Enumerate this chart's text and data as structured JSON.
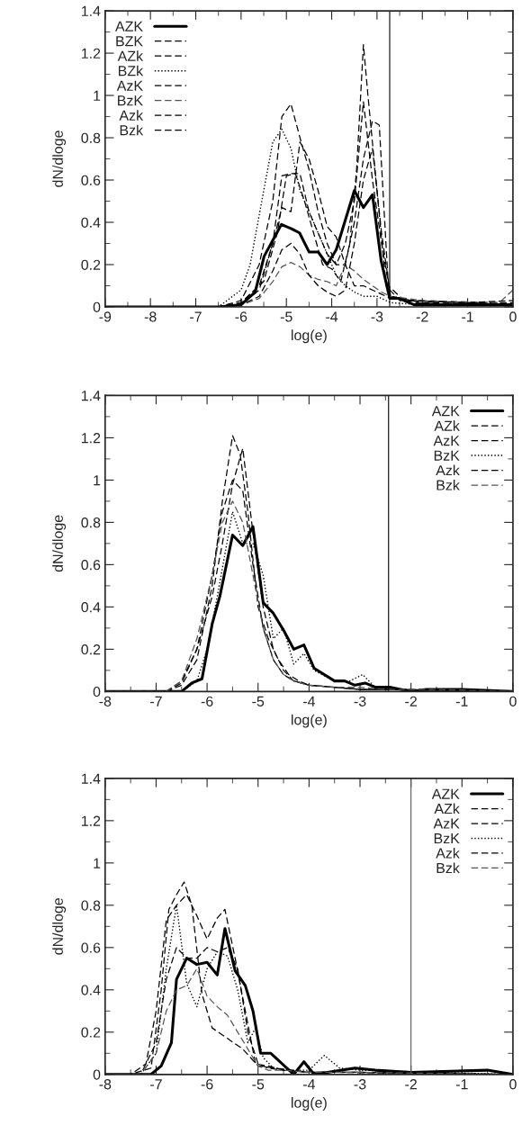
{
  "chart_data": [
    {
      "type": "line",
      "xlabel": "log(e)",
      "ylabel": "dN/dloge",
      "xlim": [
        -9,
        0
      ],
      "ylim": [
        0,
        1.4
      ],
      "xticks": [
        -9,
        -8,
        -7,
        -6,
        -5,
        -4,
        -3,
        -2,
        -1,
        0
      ],
      "yticks": [
        0,
        0.2,
        0.4,
        0.6,
        0.8,
        1,
        1.2,
        1.4
      ],
      "legend": "top left",
      "grid": false,
      "ref_lines": [
        {
          "axis": "x",
          "value": -2.72,
          "color": "#000000"
        }
      ],
      "series": [
        {
          "name": "AZK",
          "color": "#000000",
          "line_style": "solid",
          "x": [
            -9,
            -6.5,
            -6.0,
            -5.69,
            -5.49,
            -5.11,
            -4.89,
            -4.71,
            -4.5,
            -4.3,
            -4.1,
            -3.9,
            -3.5,
            -3.3,
            -3.1,
            -2.91,
            -2.72,
            -2.51,
            -2.18,
            -1.5,
            0
          ],
          "values": [
            0,
            0,
            0.01,
            0.07,
            0.24,
            0.39,
            0.37,
            0.35,
            0.26,
            0.26,
            0.2,
            0.27,
            0.55,
            0.47,
            0.53,
            0.22,
            0.04,
            0.04,
            0.01,
            0.01,
            0.01
          ]
        },
        {
          "name": "BZK",
          "color": "#000000",
          "line_style": "dashed",
          "x": [
            -9,
            -6.5,
            -6.0,
            -5.6,
            -5.3,
            -5.1,
            -4.9,
            -4.7,
            -4.5,
            -4.3,
            -4.1,
            -3.9,
            -3.7,
            -3.5,
            -3.3,
            -3.1,
            -2.9,
            -2.7,
            -2.3,
            -1,
            0
          ],
          "values": [
            0,
            0,
            0.02,
            0.1,
            0.3,
            0.62,
            0.63,
            0.63,
            0.45,
            0.35,
            0.25,
            0.2,
            0.3,
            0.5,
            0.97,
            0.6,
            0.3,
            0.05,
            0.02,
            0.01,
            0.01
          ]
        },
        {
          "name": "AZk",
          "color": "#000000",
          "line_style": "dashed",
          "x": [
            -9,
            -6.5,
            -6.0,
            -5.6,
            -5.3,
            -5.1,
            -4.9,
            -4.7,
            -4.5,
            -4.3,
            -4.1,
            -3.9,
            -3.7,
            -3.5,
            -3.3,
            -3.1,
            -2.95,
            -2.75,
            -2.4,
            -1,
            0
          ],
          "values": [
            0,
            0,
            0.03,
            0.2,
            0.5,
            0.9,
            0.96,
            0.8,
            0.65,
            0.45,
            0.3,
            0.2,
            0.2,
            0.4,
            0.7,
            0.88,
            0.86,
            0.1,
            0.03,
            0.02,
            0.02
          ]
        },
        {
          "name": "BZk",
          "color": "#000000",
          "line_style": "dotted",
          "x": [
            -9,
            -6.5,
            -6.0,
            -5.8,
            -5.5,
            -5.3,
            -5.1,
            -4.9,
            -4.7,
            -4.5,
            -4.3,
            -4.1,
            -3.9,
            -3.7,
            -3.5,
            -3.3,
            -3.0,
            -2.7,
            -2,
            0
          ],
          "values": [
            0,
            0,
            0.08,
            0.2,
            0.55,
            0.78,
            0.84,
            0.75,
            0.55,
            0.45,
            0.35,
            0.25,
            0.15,
            0.1,
            0.07,
            0.05,
            0.05,
            0.02,
            0.01,
            0.01
          ]
        },
        {
          "name": "AzK",
          "color": "#000000",
          "line_style": "dashed",
          "x": [
            -9,
            -6.5,
            -6.0,
            -5.5,
            -5.2,
            -5.0,
            -4.8,
            -4.6,
            -4.4,
            -4.2,
            -4.0,
            -3.8,
            -3.6,
            -3.45,
            -3.3,
            -3.2,
            -3.0,
            -2.8,
            -2.5,
            -1,
            0
          ],
          "values": [
            0,
            0,
            0.02,
            0.12,
            0.35,
            0.62,
            0.63,
            0.5,
            0.35,
            0.2,
            0.18,
            0.12,
            0.3,
            0.65,
            1.24,
            1.0,
            0.55,
            0.1,
            0.03,
            0.02,
            0.01
          ]
        },
        {
          "name": "BzK",
          "color": "#555555",
          "line_style": "dashed",
          "x": [
            -9,
            -6.5,
            -6.0,
            -5.6,
            -5.3,
            -5.1,
            -4.9,
            -4.7,
            -4.5,
            -4.3,
            -4.1,
            -3.9,
            -3.7,
            -3.5,
            -3.3,
            -3.1,
            -2.9,
            -2.7,
            -2,
            -0.3,
            0
          ],
          "values": [
            0,
            0,
            0.01,
            0.04,
            0.12,
            0.19,
            0.21,
            0.19,
            0.15,
            0.13,
            0.12,
            0.1,
            0.2,
            0.17,
            0.13,
            0.1,
            0.07,
            0.05,
            0.03,
            0.02,
            0.08
          ]
        },
        {
          "name": "Azk",
          "color": "#000000",
          "line_style": "dashed",
          "x": [
            -9,
            -6.5,
            -6.0,
            -5.6,
            -5.3,
            -5.1,
            -4.9,
            -4.7,
            -4.5,
            -4.3,
            -4.1,
            -3.9,
            -3.7,
            -3.5,
            -3.3,
            -3.1,
            -2.9,
            -2.7,
            -2,
            0
          ],
          "values": [
            0,
            0,
            0.01,
            0.05,
            0.17,
            0.27,
            0.3,
            0.25,
            0.15,
            0.1,
            0.07,
            0.05,
            0.08,
            0.3,
            0.6,
            0.75,
            0.35,
            0.05,
            0.02,
            0.01
          ]
        },
        {
          "name": "Bzk",
          "color": "#000000",
          "line_style": "dashed",
          "x": [
            -9,
            -6.5,
            -6.0,
            -5.6,
            -5.3,
            -5.1,
            -4.9,
            -4.7,
            -4.5,
            -4.3,
            -4.1,
            -3.9,
            -3.7,
            -3.5,
            -3.3,
            -3.1,
            -2.9,
            -2.7,
            -2.2,
            -1,
            0
          ],
          "values": [
            0,
            0,
            0.01,
            0.08,
            0.3,
            0.47,
            0.45,
            0.78,
            0.7,
            0.55,
            0.38,
            0.33,
            0.2,
            0.1,
            0.1,
            0.08,
            0.06,
            0.04,
            0.03,
            0.02,
            0.03
          ]
        }
      ]
    },
    {
      "type": "line",
      "xlabel": "log(e)",
      "ylabel": "dN/dloge",
      "xlim": [
        -8,
        0
      ],
      "ylim": [
        0,
        1.4
      ],
      "xticks": [
        -8,
        -7,
        -6,
        -5,
        -4,
        -3,
        -2,
        -1,
        0
      ],
      "yticks": [
        0,
        0.2,
        0.4,
        0.6,
        0.8,
        1,
        1.2,
        1.4
      ],
      "legend": "top right",
      "grid": false,
      "ref_lines": [
        {
          "axis": "x",
          "value": -2.44,
          "color": "#000000"
        }
      ],
      "series": [
        {
          "name": "AZK",
          "color": "#000000",
          "line_style": "solid",
          "x": [
            -8,
            -6.5,
            -6.3,
            -6.1,
            -5.9,
            -5.75,
            -5.5,
            -5.3,
            -5.1,
            -4.9,
            -4.7,
            -4.5,
            -4.3,
            -4.1,
            -3.9,
            -3.5,
            -3.3,
            -3.1,
            -2.9,
            -2.7,
            -2.4,
            -2.0,
            -1.7,
            -1.0,
            0
          ],
          "values": [
            0,
            0,
            0.04,
            0.06,
            0.32,
            0.45,
            0.74,
            0.69,
            0.78,
            0.42,
            0.37,
            0.29,
            0.2,
            0.22,
            0.11,
            0.05,
            0.05,
            0.03,
            0.04,
            0.02,
            0.02,
            0.0,
            0.01,
            0.01,
            0
          ]
        },
        {
          "name": "AZk",
          "color": "#000000",
          "line_style": "dashed",
          "x": [
            -8,
            -6.8,
            -6.5,
            -6.2,
            -5.9,
            -5.7,
            -5.5,
            -5.35,
            -5.2,
            -5.0,
            -4.8,
            -4.6,
            -4.4,
            -4.2,
            -4.0,
            -3.5,
            -3.0,
            -2.5,
            0
          ],
          "values": [
            0,
            0,
            0.03,
            0.15,
            0.5,
            0.9,
            1.21,
            1.12,
            0.85,
            0.4,
            0.25,
            0.15,
            0.08,
            0.05,
            0.03,
            0.02,
            0.01,
            0.01,
            0
          ]
        },
        {
          "name": "AzK",
          "color": "#000000",
          "line_style": "dashed",
          "x": [
            -8,
            -6.8,
            -6.5,
            -6.2,
            -5.9,
            -5.7,
            -5.5,
            -5.3,
            -5.1,
            -4.9,
            -4.7,
            -4.5,
            -4.3,
            -4.0,
            -3.5,
            -3.0,
            -2.5,
            0
          ],
          "values": [
            0,
            0,
            0.04,
            0.2,
            0.55,
            0.85,
            1.0,
            0.95,
            0.6,
            0.3,
            0.15,
            0.08,
            0.05,
            0.03,
            0.02,
            0.01,
            0.01,
            0
          ]
        },
        {
          "name": "BzK",
          "color": "#000000",
          "line_style": "dotted",
          "x": [
            -8,
            -6.5,
            -6.2,
            -6.0,
            -5.8,
            -5.5,
            -5.3,
            -5.1,
            -4.9,
            -4.7,
            -4.5,
            -4.3,
            -4.1,
            -3.9,
            -3.5,
            -3.2,
            -2.95,
            -2.7,
            -2.4,
            0
          ],
          "values": [
            0,
            0,
            0.05,
            0.2,
            0.45,
            0.85,
            0.7,
            0.7,
            0.55,
            0.25,
            0.3,
            0.13,
            0.18,
            0.1,
            0.05,
            0.05,
            0.08,
            0.02,
            0.01,
            0
          ]
        },
        {
          "name": "Azk",
          "color": "#000000",
          "line_style": "dashed",
          "x": [
            -8,
            -6.8,
            -6.5,
            -6.2,
            -5.9,
            -5.7,
            -5.5,
            -5.3,
            -5.1,
            -4.9,
            -4.7,
            -4.5,
            -4.3,
            -4.0,
            -3.5,
            -3.0,
            -2.5,
            -1.5,
            0
          ],
          "values": [
            0,
            0,
            0.05,
            0.2,
            0.45,
            0.7,
            0.98,
            1.15,
            0.75,
            0.4,
            0.2,
            0.1,
            0.05,
            0.03,
            0.02,
            0.01,
            0.01,
            0.01,
            0
          ]
        },
        {
          "name": "Bzk",
          "color": "#555555",
          "line_style": "dashed",
          "x": [
            -8,
            -6.8,
            -6.5,
            -6.2,
            -5.9,
            -5.7,
            -5.5,
            -5.3,
            -5.1,
            -4.9,
            -4.7,
            -4.5,
            -4.3,
            -4.0,
            -3.5,
            -3.0,
            -2.5,
            -1.5,
            0
          ],
          "values": [
            0,
            0,
            0.05,
            0.25,
            0.55,
            0.8,
            0.9,
            0.8,
            0.55,
            0.3,
            0.15,
            0.08,
            0.05,
            0.03,
            0.02,
            0.02,
            0.01,
            0.01,
            0
          ]
        }
      ]
    },
    {
      "type": "line",
      "xlabel": "log(e)",
      "ylabel": "dN/dloge",
      "xlim": [
        -8,
        0
      ],
      "ylim": [
        0,
        1.4
      ],
      "xticks": [
        -8,
        -7,
        -6,
        -5,
        -4,
        -3,
        -2,
        -1,
        0
      ],
      "yticks": [
        0,
        0.2,
        0.4,
        0.6,
        0.8,
        1,
        1.2,
        1.4
      ],
      "legend": "top right",
      "grid": false,
      "ref_lines": [
        {
          "axis": "x",
          "value": -2.0,
          "color": "#555555"
        }
      ],
      "series": [
        {
          "name": "AZK",
          "color": "#000000",
          "line_style": "solid",
          "x": [
            -8,
            -7.5,
            -7.1,
            -6.9,
            -6.7,
            -6.6,
            -6.4,
            -6.2,
            -6.0,
            -5.8,
            -5.65,
            -5.45,
            -5.25,
            -5.1,
            -4.95,
            -4.75,
            -4.3,
            -4.1,
            -3.9,
            -3.1,
            -2.7,
            -2.0,
            -0.5,
            0
          ],
          "values": [
            0,
            0,
            0,
            0.04,
            0.15,
            0.45,
            0.55,
            0.52,
            0.53,
            0.47,
            0.69,
            0.49,
            0.42,
            0.3,
            0.1,
            0.1,
            0,
            0.06,
            0,
            0.03,
            0.02,
            0.01,
            0.02,
            0
          ]
        },
        {
          "name": "AZk",
          "color": "#000000",
          "line_style": "dashed",
          "x": [
            -8,
            -7.5,
            -7.2,
            -7.0,
            -6.8,
            -6.6,
            -6.4,
            -6.2,
            -6.0,
            -5.8,
            -5.65,
            -5.45,
            -5.25,
            -5.05,
            -4.8,
            -4.5,
            -4.0,
            -3.0,
            0
          ],
          "values": [
            0,
            0,
            0.05,
            0.3,
            0.73,
            0.8,
            0.85,
            0.75,
            0.64,
            0.74,
            0.78,
            0.55,
            0.3,
            0.05,
            0.04,
            0.02,
            0.01,
            0.01,
            0
          ]
        },
        {
          "name": "AzK",
          "color": "#000000",
          "line_style": "dashed",
          "x": [
            -8,
            -7.5,
            -7.1,
            -6.9,
            -6.75,
            -6.6,
            -6.45,
            -6.3,
            -6.1,
            -5.9,
            -5.6,
            -5.3,
            -5.0,
            -4.7,
            -4.3,
            -4.0,
            -3.5,
            0
          ],
          "values": [
            0,
            0,
            0.03,
            0.4,
            0.78,
            0.85,
            0.91,
            0.8,
            0.38,
            0.22,
            0.17,
            0.12,
            0.04,
            0.03,
            0.02,
            0.01,
            0.01,
            0
          ]
        },
        {
          "name": "BzK",
          "color": "#000000",
          "line_style": "dotted",
          "x": [
            -8,
            -7.3,
            -7.0,
            -6.8,
            -6.6,
            -6.4,
            -6.2,
            -6.0,
            -5.8,
            -5.6,
            -5.4,
            -5.2,
            -5.05,
            -4.9,
            -4.7,
            -4.3,
            -4.0,
            -3.7,
            -3.4,
            -3.0,
            0
          ],
          "values": [
            0,
            0,
            0.1,
            0.5,
            0.8,
            0.43,
            0.32,
            0.5,
            0.58,
            0.56,
            0.4,
            0.15,
            0.22,
            0.08,
            0.03,
            0.02,
            0.02,
            0.09,
            0.03,
            0.02,
            0
          ]
        },
        {
          "name": "Azk",
          "color": "#000000",
          "line_style": "dashed",
          "x": [
            -8,
            -7.3,
            -7.0,
            -6.8,
            -6.6,
            -6.4,
            -6.2,
            -6.0,
            -5.8,
            -5.6,
            -5.4,
            -5.2,
            -5.0,
            -4.8,
            -4.5,
            -4.0,
            -3.0,
            0
          ],
          "values": [
            0,
            0,
            0.15,
            0.45,
            0.6,
            0.55,
            0.55,
            0.6,
            0.58,
            0.6,
            0.5,
            0.2,
            0.05,
            0.03,
            0.02,
            0.01,
            0.01,
            0
          ]
        },
        {
          "name": "Bzk",
          "color": "#555555",
          "line_style": "dashed",
          "x": [
            -8,
            -7.3,
            -7.0,
            -6.8,
            -6.6,
            -6.4,
            -6.2,
            -6.0,
            -5.8,
            -5.6,
            -5.4,
            -5.2,
            -5.0,
            -4.8,
            -4.5,
            -4.0,
            -3.0,
            0
          ],
          "values": [
            0,
            0,
            0.1,
            0.3,
            0.4,
            0.42,
            0.5,
            0.37,
            0.32,
            0.28,
            0.2,
            0.12,
            0.04,
            0.02,
            0.02,
            0.01,
            0.01,
            0
          ]
        }
      ]
    }
  ]
}
